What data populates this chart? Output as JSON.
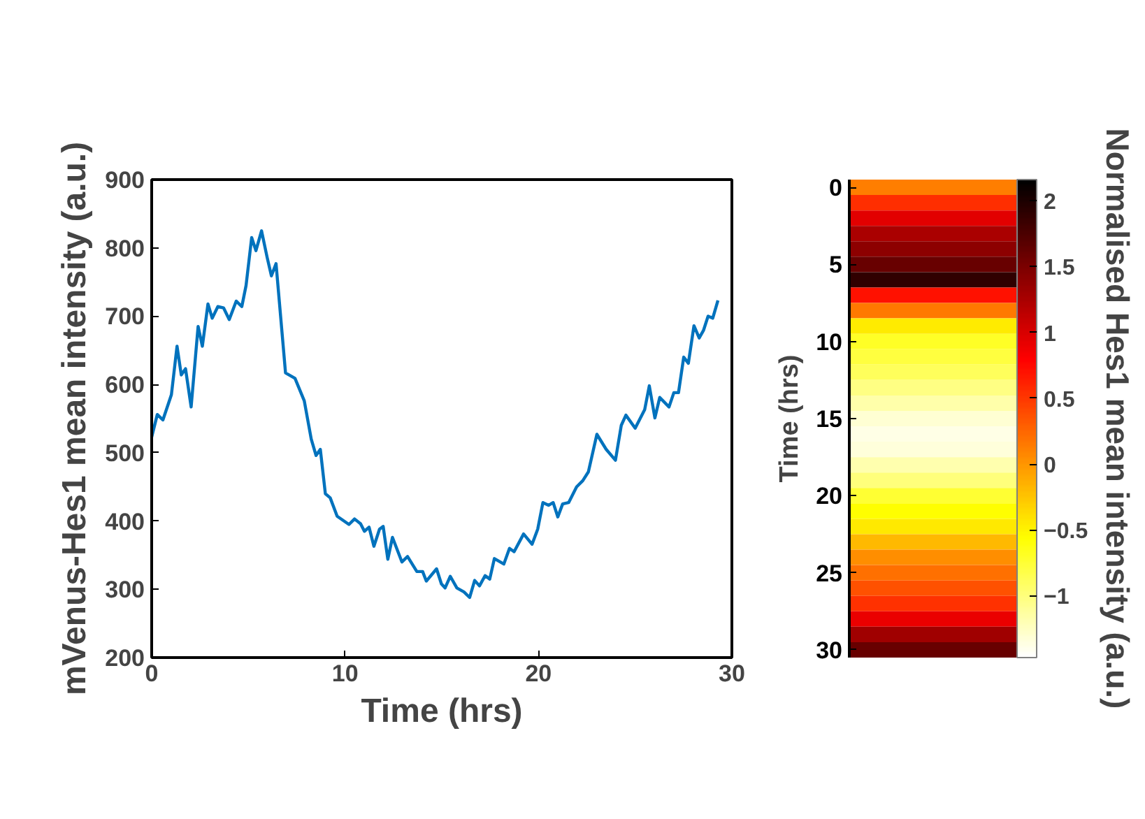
{
  "chart_data": [
    {
      "type": "line",
      "xlabel": "Time (hrs)",
      "ylabel": "mVenus-Hes1 mean intensity (a.u.)",
      "xlim": [
        0,
        30
      ],
      "xticks": [
        0,
        10,
        20,
        30
      ],
      "ylim": [
        200,
        900
      ],
      "yticks": [
        200,
        300,
        400,
        500,
        600,
        700,
        800,
        900
      ],
      "series": [
        {
          "color": "#0072bd",
          "x": [
            0,
            0.29,
            0.58,
            1.02,
            1.31,
            1.53,
            1.75,
            2.04,
            2.4,
            2.62,
            2.91,
            3.13,
            3.42,
            3.72,
            4.01,
            4.37,
            4.66,
            4.88,
            5.17,
            5.39,
            5.68,
            5.97,
            6.19,
            6.43,
            6.92,
            7.41,
            7.89,
            8.25,
            8.5,
            8.72,
            8.98,
            9.23,
            9.59,
            10.2,
            10.49,
            10.8,
            11.0,
            11.24,
            11.49,
            11.78,
            11.97,
            12.21,
            12.45,
            12.94,
            13.23,
            13.71,
            14.01,
            14.2,
            14.73,
            14.98,
            15.17,
            15.44,
            15.78,
            16.15,
            16.44,
            16.7,
            16.95,
            17.24,
            17.48,
            17.72,
            18.21,
            18.5,
            18.74,
            19.23,
            19.67,
            19.96,
            20.23,
            20.52,
            20.76,
            21.0,
            21.25,
            21.56,
            21.97,
            22.29,
            22.58,
            23.02,
            23.5,
            23.98,
            24.28,
            24.52,
            25.0,
            25.49,
            25.73,
            26.02,
            26.27,
            26.75,
            27.0,
            27.24,
            27.51,
            27.75,
            28.04,
            28.31,
            28.53,
            28.77,
            29.01,
            29.28
          ],
          "values": [
            523,
            556,
            548,
            585,
            656,
            614,
            623,
            567,
            685,
            656,
            718,
            697,
            714,
            712,
            695,
            722,
            714,
            745,
            815,
            796,
            825,
            786,
            759,
            777,
            617,
            609,
            576,
            520,
            496,
            505,
            440,
            434,
            407,
            395,
            403,
            396,
            385,
            391,
            363,
            388,
            392,
            344,
            376,
            340,
            348,
            326,
            326,
            312,
            330,
            308,
            302,
            319,
            302,
            296,
            288,
            313,
            305,
            320,
            315,
            345,
            337,
            360,
            355,
            381,
            366,
            388,
            427,
            423,
            427,
            406,
            425,
            427,
            450,
            459,
            472,
            527,
            505,
            489,
            540,
            555,
            536,
            563,
            598,
            551,
            581,
            567,
            588,
            588,
            640,
            631,
            686,
            668,
            679,
            700,
            697,
            723
          ]
        }
      ]
    },
    {
      "type": "heatmap",
      "ylabel": "Time (hrs)",
      "clabel": "Normalised Hes1 mean intensity (a.u.)",
      "categories": [
        null
      ],
      "tick_labels": "y",
      "clim": [
        -1.47,
        2.16
      ],
      "cticks": [
        -1,
        -0.5,
        0,
        0.5,
        1,
        1.5,
        2
      ],
      "y_categories": [
        "0",
        null,
        null,
        null,
        null,
        "5",
        null,
        null,
        null,
        null,
        "10",
        null,
        null,
        null,
        null,
        "15",
        null,
        null,
        null,
        null,
        "20",
        null,
        null,
        null,
        null,
        "25",
        null,
        null,
        null,
        null,
        "30"
      ],
      "cells": [
        [
          0.12
        ],
        [
          0.55
        ],
        [
          0.95
        ],
        [
          1.25
        ],
        [
          1.4
        ],
        [
          1.6
        ],
        [
          1.9
        ],
        [
          0.7
        ],
        [
          0.15
        ],
        [
          -0.45
        ],
        [
          -0.7
        ],
        [
          -0.78
        ],
        [
          -0.88
        ],
        [
          -1.03
        ],
        [
          -1.16
        ],
        [
          -1.3
        ],
        [
          -1.38
        ],
        [
          -1.33
        ],
        [
          -1.18
        ],
        [
          -1.0
        ],
        [
          -0.74
        ],
        [
          -0.55
        ],
        [
          -0.44
        ],
        [
          -0.18
        ],
        [
          0.04
        ],
        [
          0.2
        ],
        [
          0.37
        ],
        [
          0.54
        ],
        [
          0.9
        ],
        [
          1.3
        ],
        [
          1.6
        ]
      ]
    }
  ]
}
